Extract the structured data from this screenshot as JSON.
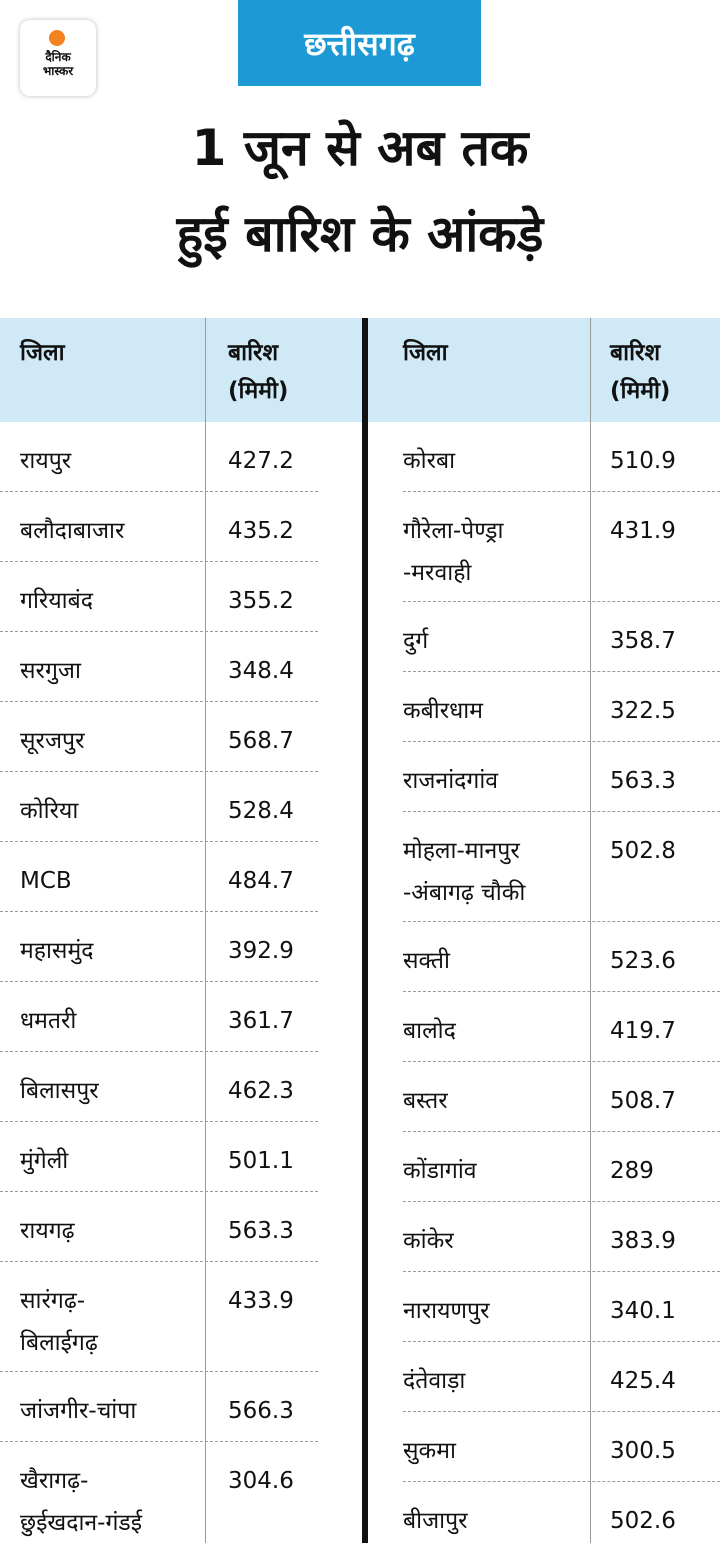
{
  "brand": {
    "logo_text": "दैनिक\nभास्कर",
    "accent": "#f58220"
  },
  "state_tag": {
    "label": "छत्तीसगढ़",
    "color": "#1d9ad6"
  },
  "headline": {
    "line1": "1 जून से अब तक",
    "line2": "हुई बारिश के आंकड़े"
  },
  "table": {
    "header_bg": "#cfe9f6",
    "col_district": "जिला",
    "col_rain": "बारिश\n(मिमी)",
    "left_rows": [
      {
        "district": "रायपुर",
        "rain": "427.2"
      },
      {
        "district": "बलौदाबाजार",
        "rain": "435.2"
      },
      {
        "district": "गरियाबंद",
        "rain": "355.2"
      },
      {
        "district": "सरगुजा",
        "rain": "348.4"
      },
      {
        "district": "सूरजपुर",
        "rain": "568.7"
      },
      {
        "district": "कोरिया",
        "rain": "528.4"
      },
      {
        "district": "MCB",
        "rain": "484.7"
      },
      {
        "district": "महासमुंद",
        "rain": "392.9"
      },
      {
        "district": "धमतरी",
        "rain": "361.7"
      },
      {
        "district": "बिलासपुर",
        "rain": "462.3"
      },
      {
        "district": "मुंगेली",
        "rain": "501.1"
      },
      {
        "district": "रायगढ़",
        "rain": "563.3"
      },
      {
        "district": "सारंगढ़-\nबिलाईगढ़",
        "rain": "433.9"
      },
      {
        "district": "जांजगीर-चांपा",
        "rain": "566.3"
      },
      {
        "district": "खैरागढ़-\nछुईखदान-गंडई",
        "rain": "304.6"
      }
    ],
    "right_rows": [
      {
        "district": "कोरबा",
        "rain": "510.9"
      },
      {
        "district": "गौरेला-पेण्ड्रा\n-मरवाही",
        "rain": "431.9"
      },
      {
        "district": "दुर्ग",
        "rain": "358.7"
      },
      {
        "district": "कबीरधाम",
        "rain": "322.5"
      },
      {
        "district": "राजनांदगांव",
        "rain": "563.3"
      },
      {
        "district": "मोहला-मानपुर\n-अंबागढ़ चौकी",
        "rain": "502.8"
      },
      {
        "district": "सक्ती",
        "rain": "523.6"
      },
      {
        "district": "बालोद",
        "rain": "419.7"
      },
      {
        "district": "बस्तर",
        "rain": "508.7"
      },
      {
        "district": "कोंडागांव",
        "rain": "289"
      },
      {
        "district": "कांकेर",
        "rain": "383.9"
      },
      {
        "district": "नारायणपुर",
        "rain": "340.1"
      },
      {
        "district": "दंतेवाड़ा",
        "rain": "425.4"
      },
      {
        "district": "सुकमा",
        "rain": "300.5"
      },
      {
        "district": "बीजापुर",
        "rain": "502.6"
      }
    ]
  }
}
